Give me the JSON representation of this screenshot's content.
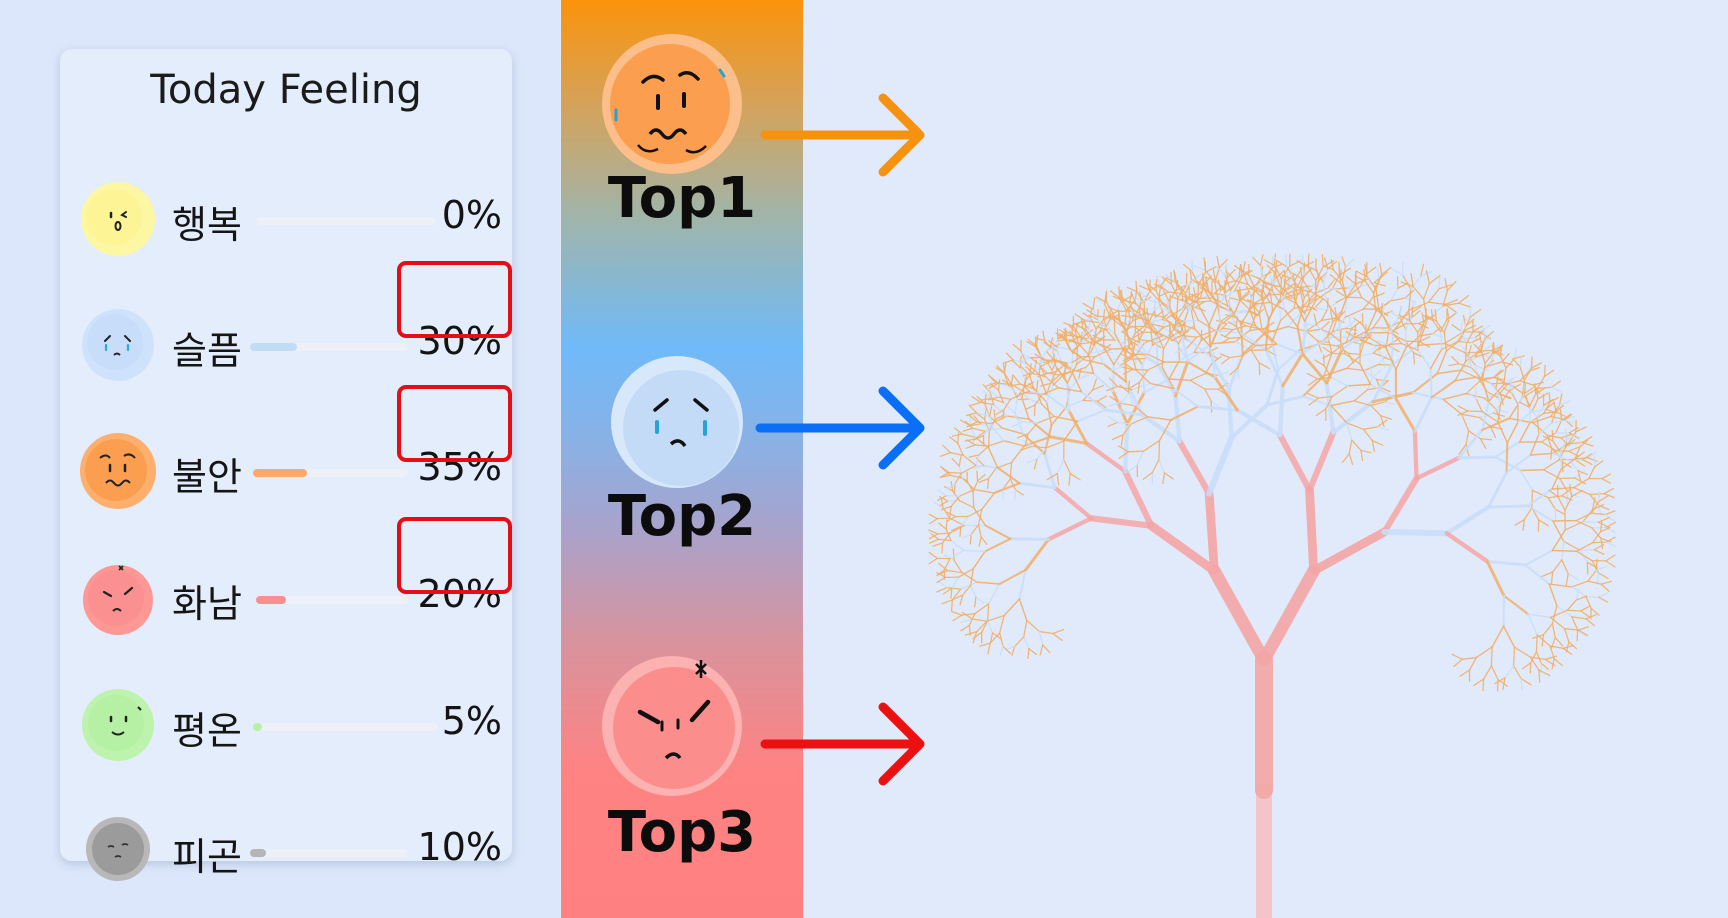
{
  "card": {
    "title": "Today Feeling",
    "emotions": [
      {
        "label": "행복",
        "percent_text": "0%",
        "value": 0,
        "color": "#fcf59e",
        "fill": "#f6e36a",
        "highlighted": false
      },
      {
        "label": "슬픔",
        "percent_text": "30%",
        "value": 30,
        "color": "#c9defa",
        "fill": "#c3dcf6",
        "highlighted": true
      },
      {
        "label": "불안",
        "percent_text": "35%",
        "value": 35,
        "color": "#fea154",
        "fill": "#fba869",
        "highlighted": true
      },
      {
        "label": "화남",
        "percent_text": "20%",
        "value": 20,
        "color": "#fd9391",
        "fill": "#f88e8e",
        "highlighted": true
      },
      {
        "label": "평온",
        "percent_text": "5%",
        "value": 5,
        "color": "#b7f2a6",
        "fill": "#b7f0a6",
        "highlighted": false
      },
      {
        "label": "피곤",
        "percent_text": "10%",
        "value": 10,
        "color": "#9d9d9d",
        "fill": "#b5b5b5",
        "highlighted": false
      }
    ]
  },
  "ranking": [
    {
      "label": "Top1",
      "emotion": "anxious-face-icon",
      "face_color": "#fea154",
      "arrow_color": "#f7920f"
    },
    {
      "label": "Top2",
      "emotion": "sad-face-icon",
      "face_color": "#c9defa",
      "arrow_color": "#0b6ef6"
    },
    {
      "label": "Top3",
      "emotion": "angry-face-icon",
      "face_color": "#fd9391",
      "arrow_color": "#ec1010"
    }
  ],
  "colors": {
    "background": "#e1eafa",
    "card": "#e4edfb",
    "highlight": "#e30f15",
    "tree_trunk": "#f5a6a6",
    "tree_sad": "#c9defa",
    "tree_anxious": "#f1b06a"
  }
}
